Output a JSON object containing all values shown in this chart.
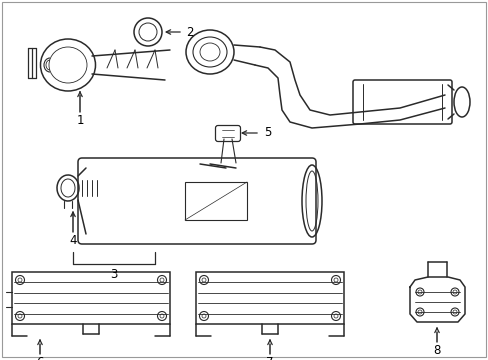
{
  "background_color": "#ffffff",
  "line_color": "#2a2a2a",
  "label_color": "#000000",
  "figsize": [
    4.89,
    3.6
  ],
  "dpi": 100,
  "border_color": "#999999"
}
